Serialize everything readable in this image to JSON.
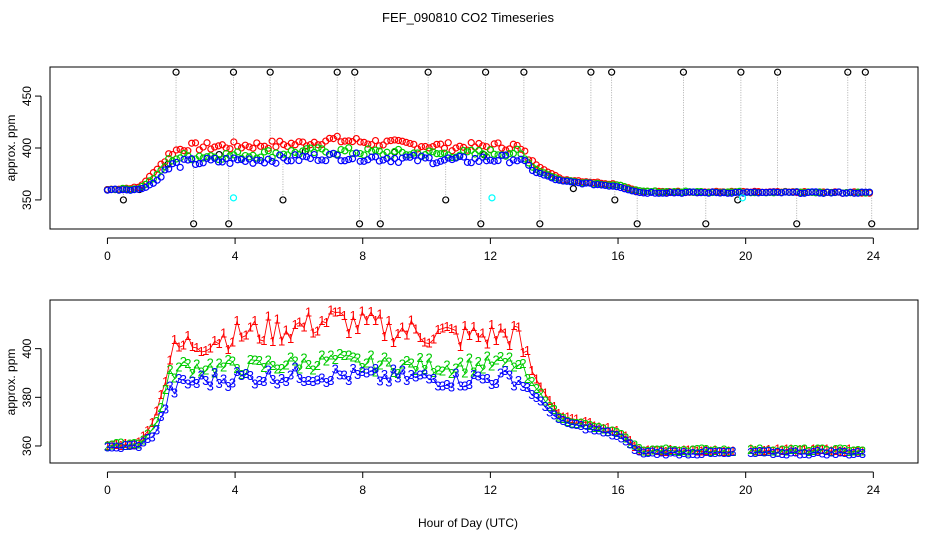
{
  "figure": {
    "title": "FEF_090810  CO2 Timeseries",
    "xlabel": "Hour of Day (UTC)"
  },
  "chart_data": [
    {
      "type": "scatter",
      "ylabel": "approx. ppm",
      "xlim": [
        -1.8,
        25.4
      ],
      "ylim": [
        322,
        478
      ],
      "x_ticks": [
        0,
        4,
        8,
        12,
        16,
        20,
        24
      ],
      "y_ticks": [
        350,
        400,
        450
      ],
      "grid": false,
      "point_marker": "o",
      "series_colors": {
        "ref": "#000000",
        "s1": "#ff0000",
        "s2": "#00cc00",
        "s3": "#0000ff",
        "s4": "#00ffff"
      },
      "ref_low": 350,
      "ref_mid": 360,
      "ref_high": 473,
      "ref_bottom": 327,
      "spike_times": [
        2.15,
        3.95,
        5.1,
        7.2,
        7.75,
        10.05,
        11.85,
        13.05,
        15.15,
        15.8,
        18.05,
        19.85,
        21.0,
        23.2,
        23.75
      ],
      "dip_times": [
        0.5,
        2.7,
        3.8,
        5.5,
        7.9,
        8.55,
        10.6,
        11.7,
        13.55,
        15.9,
        16.6,
        18.75,
        19.75,
        21.6,
        23.95
      ],
      "cyan_points": [
        {
          "x": 3.95,
          "y": 352
        },
        {
          "x": 12.05,
          "y": 352
        },
        {
          "x": 19.9,
          "y": 352
        }
      ],
      "profile_x": [
        0,
        1.0,
        1.5,
        2.0,
        2.5,
        4,
        6,
        7,
        9,
        11,
        12.8,
        13.4,
        14.2,
        16,
        16.7,
        24
      ],
      "profile_s1": [
        360,
        362,
        378,
        396,
        401,
        402,
        404,
        408,
        404,
        401,
        402,
        385,
        370,
        365,
        358,
        357
      ],
      "profile_s2": [
        360,
        361,
        372,
        390,
        392,
        393,
        396,
        397,
        395,
        394,
        396,
        380,
        369,
        364,
        358,
        357
      ],
      "profile_s3": [
        360,
        360,
        367,
        383,
        386,
        388,
        390,
        392,
        390,
        388,
        390,
        377,
        368,
        363,
        357,
        357
      ]
    },
    {
      "type": "scatter",
      "ylabel": "approx. ppm",
      "xlim": [
        -1.8,
        25.4
      ],
      "ylim": [
        353,
        420
      ],
      "x_ticks": [
        0,
        4,
        8,
        12,
        16,
        20,
        24
      ],
      "y_ticks": [
        360,
        380,
        400
      ],
      "grid": false,
      "point_markers": [
        "1",
        "2",
        "3"
      ],
      "series_colors": {
        "s1": "#ff0000",
        "s2": "#00cc00",
        "s3": "#0000ff"
      },
      "profile_x": [
        0,
        1.0,
        1.5,
        2.0,
        2.5,
        4,
        6,
        7,
        9,
        11,
        12.8,
        13.4,
        14.2,
        16,
        16.7,
        19.7,
        20.1,
        24
      ],
      "profile_s1": [
        360,
        361,
        372,
        398,
        402,
        406,
        409,
        412,
        408,
        405,
        406,
        388,
        372,
        366,
        358,
        358,
        358,
        358
      ],
      "profile_s2": [
        360,
        361,
        368,
        390,
        393,
        392,
        394,
        395,
        393,
        393,
        394,
        384,
        371,
        365,
        358,
        358,
        358,
        358
      ],
      "profile_s3": [
        359,
        360,
        365,
        383,
        386,
        388,
        389,
        389,
        388,
        387,
        388,
        380,
        370,
        364,
        357,
        357,
        357,
        357
      ],
      "gap_hours": [
        19.7,
        20.1
      ],
      "spike_times": [
        2.05,
        3.7,
        5.3,
        6.7,
        7.6,
        9.2,
        11.0,
        12.7
      ]
    }
  ]
}
